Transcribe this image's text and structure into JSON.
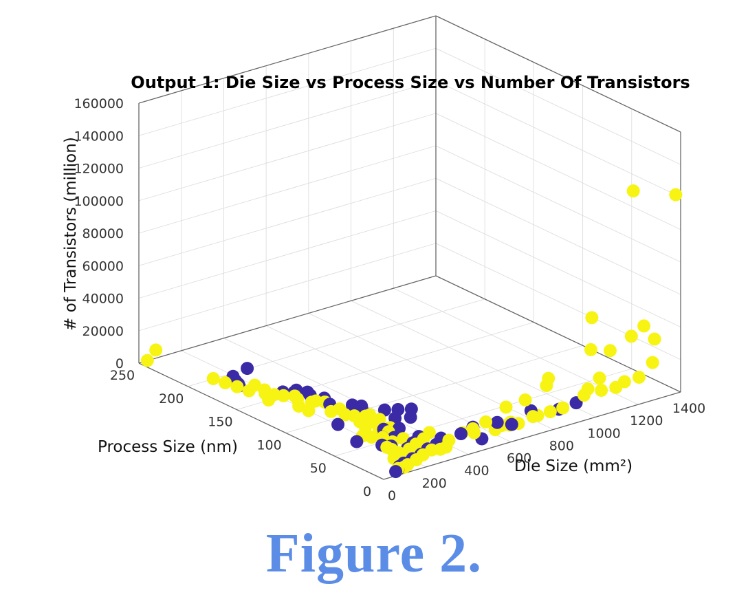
{
  "chart_data": {
    "type": "scatter",
    "projection": "3d",
    "title": "Output 1: Die Size vs Process Size vs Number Of Transistors",
    "xlabel": "Process Size (nm)",
    "ylabel": "Die Size (mm²)",
    "zlabel": "# of Transistors (million)",
    "xlim": [
      0,
      250
    ],
    "ylim": [
      0,
      1400
    ],
    "zlim": [
      0,
      160000
    ],
    "x_ticks": [
      "0",
      "50",
      "100",
      "150",
      "200",
      "250"
    ],
    "y_ticks": [
      "0",
      "200",
      "400",
      "600",
      "800",
      "1000",
      "1200",
      "1400"
    ],
    "z_ticks": [
      "0",
      "20000",
      "40000",
      "60000",
      "80000",
      "100000",
      "120000",
      "140000",
      "160000"
    ],
    "grid": true,
    "colors": {
      "purple": "#3b2aa6",
      "yellow": "#f7f414"
    },
    "series": [
      {
        "color": "purple",
        "points": [
          [
            180,
            150,
            300
          ],
          [
            183,
            160,
            250
          ],
          [
            188,
            170,
            280
          ],
          [
            192,
            175,
            200
          ],
          [
            195,
            190,
            300
          ],
          [
            200,
            280,
            320
          ],
          [
            155,
            240,
            250
          ],
          [
            148,
            260,
            200
          ],
          [
            150,
            270,
            300
          ],
          [
            152,
            290,
            280
          ],
          [
            140,
            300,
            250
          ],
          [
            145,
            310,
            320
          ],
          [
            130,
            320,
            500
          ],
          [
            120,
            300,
            400
          ],
          [
            110,
            360,
            450
          ],
          [
            100,
            360,
            500
          ],
          [
            105,
            380,
            500
          ],
          [
            90,
            420,
            800
          ],
          [
            85,
            460,
            1000
          ],
          [
            80,
            500,
            1200
          ],
          [
            75,
            400,
            800
          ],
          [
            70,
            450,
            900
          ],
          [
            65,
            300,
            700
          ],
          [
            60,
            350,
            800
          ],
          [
            55,
            250,
            600
          ],
          [
            50,
            280,
            700
          ],
          [
            45,
            200,
            500
          ],
          [
            40,
            220,
            600
          ],
          [
            40,
            350,
            1500
          ],
          [
            35,
            300,
            1000
          ],
          [
            30,
            250,
            800
          ],
          [
            28,
            400,
            2000
          ],
          [
            25,
            480,
            2500
          ],
          [
            22,
            350,
            1800
          ],
          [
            20,
            300,
            1500
          ],
          [
            16,
            250,
            1200
          ],
          [
            14,
            200,
            1000
          ],
          [
            12,
            150,
            800
          ],
          [
            10,
            120,
            500
          ],
          [
            7,
            100,
            400
          ],
          [
            5,
            80,
            300
          ],
          [
            28,
            550,
            3000
          ],
          [
            14,
            600,
            8000
          ],
          [
            12,
            750,
            10000
          ],
          [
            16,
            900,
            4000
          ],
          [
            20,
            1000,
            3000
          ],
          [
            10,
            650,
            6000
          ],
          [
            8,
            500,
            3500
          ],
          [
            60,
            150,
            300
          ],
          [
            90,
            200,
            350
          ]
        ]
      },
      {
        "color": "yellow",
        "points": [
          [
            250,
            40,
            100
          ],
          [
            250,
            80,
            5000
          ],
          [
            200,
            120,
            200
          ],
          [
            190,
            130,
            150
          ],
          [
            180,
            140,
            150
          ],
          [
            170,
            150,
            150
          ],
          [
            175,
            200,
            200
          ],
          [
            160,
            180,
            200
          ],
          [
            165,
            200,
            150
          ],
          [
            155,
            200,
            150
          ],
          [
            150,
            220,
            150
          ],
          [
            145,
            250,
            200
          ],
          [
            140,
            240,
            200
          ],
          [
            130,
            260,
            300
          ],
          [
            130,
            280,
            300
          ],
          [
            125,
            300,
            300
          ],
          [
            110,
            260,
            300
          ],
          [
            110,
            300,
            350
          ],
          [
            100,
            280,
            400
          ],
          [
            95,
            300,
            400
          ],
          [
            90,
            330,
            500
          ],
          [
            90,
            350,
            500
          ],
          [
            85,
            280,
            400
          ],
          [
            80,
            300,
            500
          ],
          [
            80,
            350,
            600
          ],
          [
            75,
            260,
            500
          ],
          [
            70,
            300,
            500
          ],
          [
            65,
            330,
            600
          ],
          [
            65,
            200,
            400
          ],
          [
            60,
            220,
            400
          ],
          [
            55,
            250,
            500
          ],
          [
            50,
            230,
            500
          ],
          [
            45,
            300,
            700
          ],
          [
            45,
            250,
            600
          ],
          [
            40,
            200,
            600
          ],
          [
            40,
            400,
            2000
          ],
          [
            35,
            350,
            1500
          ],
          [
            32,
            300,
            1000
          ],
          [
            28,
            200,
            800
          ],
          [
            28,
            250,
            1000
          ],
          [
            25,
            300,
            1200
          ],
          [
            22,
            150,
            800
          ],
          [
            20,
            200,
            1000
          ],
          [
            20,
            400,
            3000
          ],
          [
            16,
            300,
            2000
          ],
          [
            14,
            250,
            1500
          ],
          [
            12,
            350,
            3000
          ],
          [
            10,
            200,
            1500
          ],
          [
            8,
            150,
            1000
          ],
          [
            7,
            100,
            800
          ],
          [
            7,
            300,
            5000
          ],
          [
            5,
            120,
            1500
          ],
          [
            5,
            450,
            10000
          ],
          [
            4,
            500,
            15000
          ],
          [
            5,
            600,
            20000
          ],
          [
            5,
            800,
            30000
          ],
          [
            16,
            800,
            4000
          ],
          [
            14,
            850,
            5000
          ],
          [
            12,
            900,
            6000
          ],
          [
            12,
            1000,
            10000
          ],
          [
            8,
            1000,
            15000
          ],
          [
            7,
            1050,
            20000
          ],
          [
            16,
            1100,
            8000
          ],
          [
            14,
            1200,
            10000
          ],
          [
            12,
            1150,
            9000
          ],
          [
            10,
            1250,
            12000
          ],
          [
            7,
            1300,
            20000
          ],
          [
            16,
            600,
            3000
          ],
          [
            14,
            700,
            3500
          ],
          [
            12,
            650,
            5000
          ],
          [
            10,
            750,
            7000
          ],
          [
            20,
            650,
            2500
          ],
          [
            22,
            700,
            2000
          ],
          [
            28,
            500,
            1500
          ],
          [
            28,
            550,
            2000
          ],
          [
            7,
            800,
            25000
          ],
          [
            7,
            700,
            20000
          ],
          [
            7,
            1100,
            35000
          ],
          [
            5,
            1000,
            40000
          ],
          [
            7,
            1200,
            40000
          ],
          [
            5,
            1250,
            45000
          ],
          [
            5,
            1300,
            35000
          ],
          [
            4,
            1000,
            60000
          ],
          [
            5,
            1200,
            130000
          ],
          [
            5,
            1400,
            120000
          ],
          [
            150,
            150,
            150
          ],
          [
            130,
            200,
            200
          ],
          [
            120,
            200,
            300
          ],
          [
            60,
            300,
            600
          ],
          [
            35,
            200,
            700
          ]
        ]
      }
    ]
  },
  "caption": "Figure 2."
}
